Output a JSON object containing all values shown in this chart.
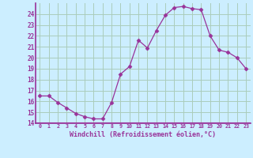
{
  "x": [
    0,
    1,
    2,
    3,
    4,
    5,
    6,
    7,
    8,
    9,
    10,
    11,
    12,
    13,
    14,
    15,
    16,
    17,
    18,
    19,
    20,
    21,
    22,
    23
  ],
  "y": [
    16.5,
    16.5,
    15.9,
    15.4,
    14.9,
    14.6,
    14.4,
    14.4,
    15.9,
    18.5,
    19.2,
    21.6,
    20.9,
    22.5,
    23.9,
    24.6,
    24.7,
    24.5,
    24.4,
    22.0,
    20.7,
    20.5,
    20.0,
    19.0
  ],
  "xlim": [
    -0.5,
    23.5
  ],
  "ylim": [
    14,
    25
  ],
  "yticks": [
    14,
    15,
    16,
    17,
    18,
    19,
    20,
    21,
    22,
    23,
    24
  ],
  "xtick_labels": [
    "0",
    "1",
    "2",
    "3",
    "4",
    "5",
    "6",
    "7",
    "8",
    "9",
    "10",
    "11",
    "12",
    "13",
    "14",
    "15",
    "16",
    "17",
    "18",
    "19",
    "20",
    "21",
    "22",
    "23"
  ],
  "xlabel": "Windchill (Refroidissement éolien,°C)",
  "line_color": "#993399",
  "marker_color": "#993399",
  "bg_color": "#cceeff",
  "grid_color": "#aaccbb",
  "tick_color": "#993399",
  "label_color": "#993399",
  "spine_color": "#993399",
  "xlabel_bar_color": "#993399"
}
